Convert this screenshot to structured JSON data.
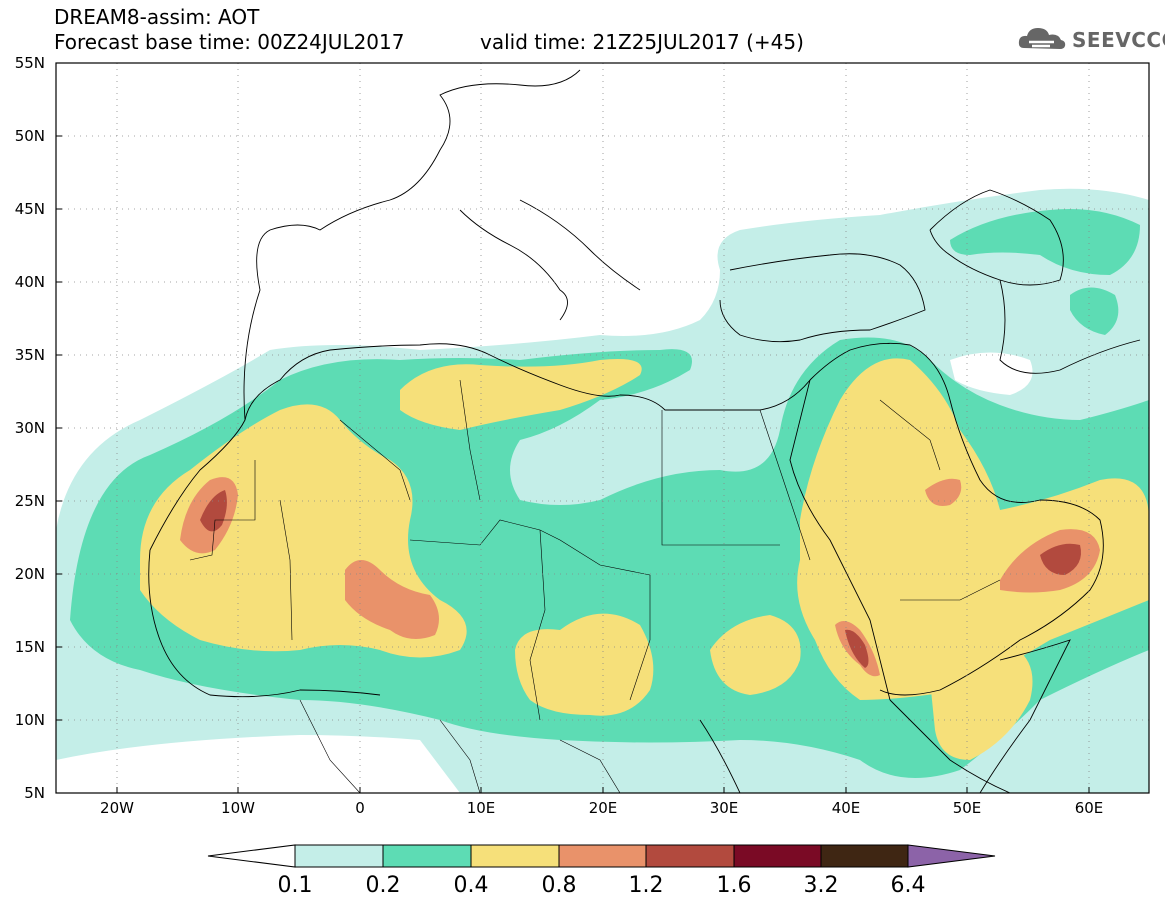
{
  "header": {
    "title": "DREAM8-assim: AOT",
    "base_time": "Forecast base time: 00Z24JUL2017",
    "valid_time": "valid time: 21Z25JUL2017 (+45)",
    "logo": "SEEVCCC"
  },
  "map": {
    "projection": "lat-lon",
    "lon_range": [
      -25,
      65
    ],
    "lat_range": [
      5,
      55
    ],
    "lat_labels": [
      "55N",
      "50N",
      "45N",
      "40N",
      "35N",
      "30N",
      "25N",
      "20N",
      "15N",
      "10N",
      "5N"
    ],
    "lon_labels": [
      "20W",
      "10W",
      "0",
      "10E",
      "20E",
      "30E",
      "40E",
      "50E",
      "60E"
    ],
    "gridlines": "dotted"
  },
  "colorbar": {
    "labels": [
      "0.1",
      "0.2",
      "0.4",
      "0.8",
      "1.2",
      "1.6",
      "3.2",
      "6.4"
    ],
    "colors": [
      "#ffffff",
      "#c4eee8",
      "#5ddcb4",
      "#f6e07a",
      "#e9926a",
      "#b24a3e",
      "#7a0a25",
      "#3f2613",
      "#8c63a8"
    ]
  },
  "fields": {
    "ocean": "#ffffff",
    "coast": "#000000"
  }
}
